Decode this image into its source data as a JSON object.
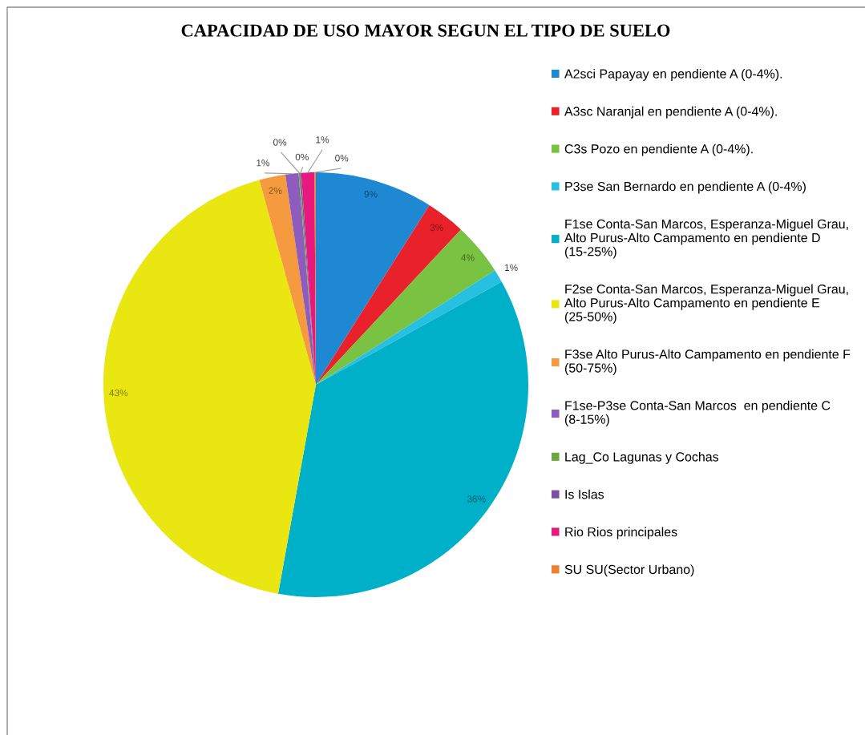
{
  "chart_data": {
    "type": "pie",
    "title": "CAPACIDAD DE USO MAYOR SEGUN EL TIPO DE SUELO",
    "categories": [
      "A2sci Papayay en pendiente A (0-4%).",
      "A3sc Naranjal en pendiente A (0-4%).",
      "C3s Pozo en pendiente A (0-4%).",
      "P3se San Bernardo en pendiente A (0-4%)",
      "F1se Conta-San Marcos, Esperanza-Miguel Grau, Alto Purus-Alto Campamento en pendiente D (15-25%)",
      "F2se Conta-San Marcos, Esperanza-Miguel Grau, Alto Purus-Alto Campamento en pendiente E (25-50%)",
      "F3se Alto Purus-Alto Campamento en pendiente F (50-75%)",
      "F1se-P3se Conta-San Marcos  en pendiente C (8-15%)",
      "Lag_Co Lagunas y Cochas",
      "Is Islas",
      "Rio Rios principales",
      "SU SU(Sector Urbano)"
    ],
    "values": [
      9,
      3,
      4,
      1,
      36,
      43,
      2,
      1,
      0.1,
      0.1,
      1,
      0.1
    ],
    "value_labels": [
      "9%",
      "3%",
      "4%",
      "1%",
      "36%",
      "43%",
      "2%",
      "1%",
      "0%",
      "0%",
      "1%",
      "0%"
    ],
    "colors": [
      "#1e88d2",
      "#e8212b",
      "#79c242",
      "#27c0e0",
      "#00afc8",
      "#e9e612",
      "#f59a3e",
      "#8d5cbc",
      "#6aa840",
      "#7b4fa3",
      "#e8197e",
      "#f08030"
    ],
    "legend": "right"
  }
}
